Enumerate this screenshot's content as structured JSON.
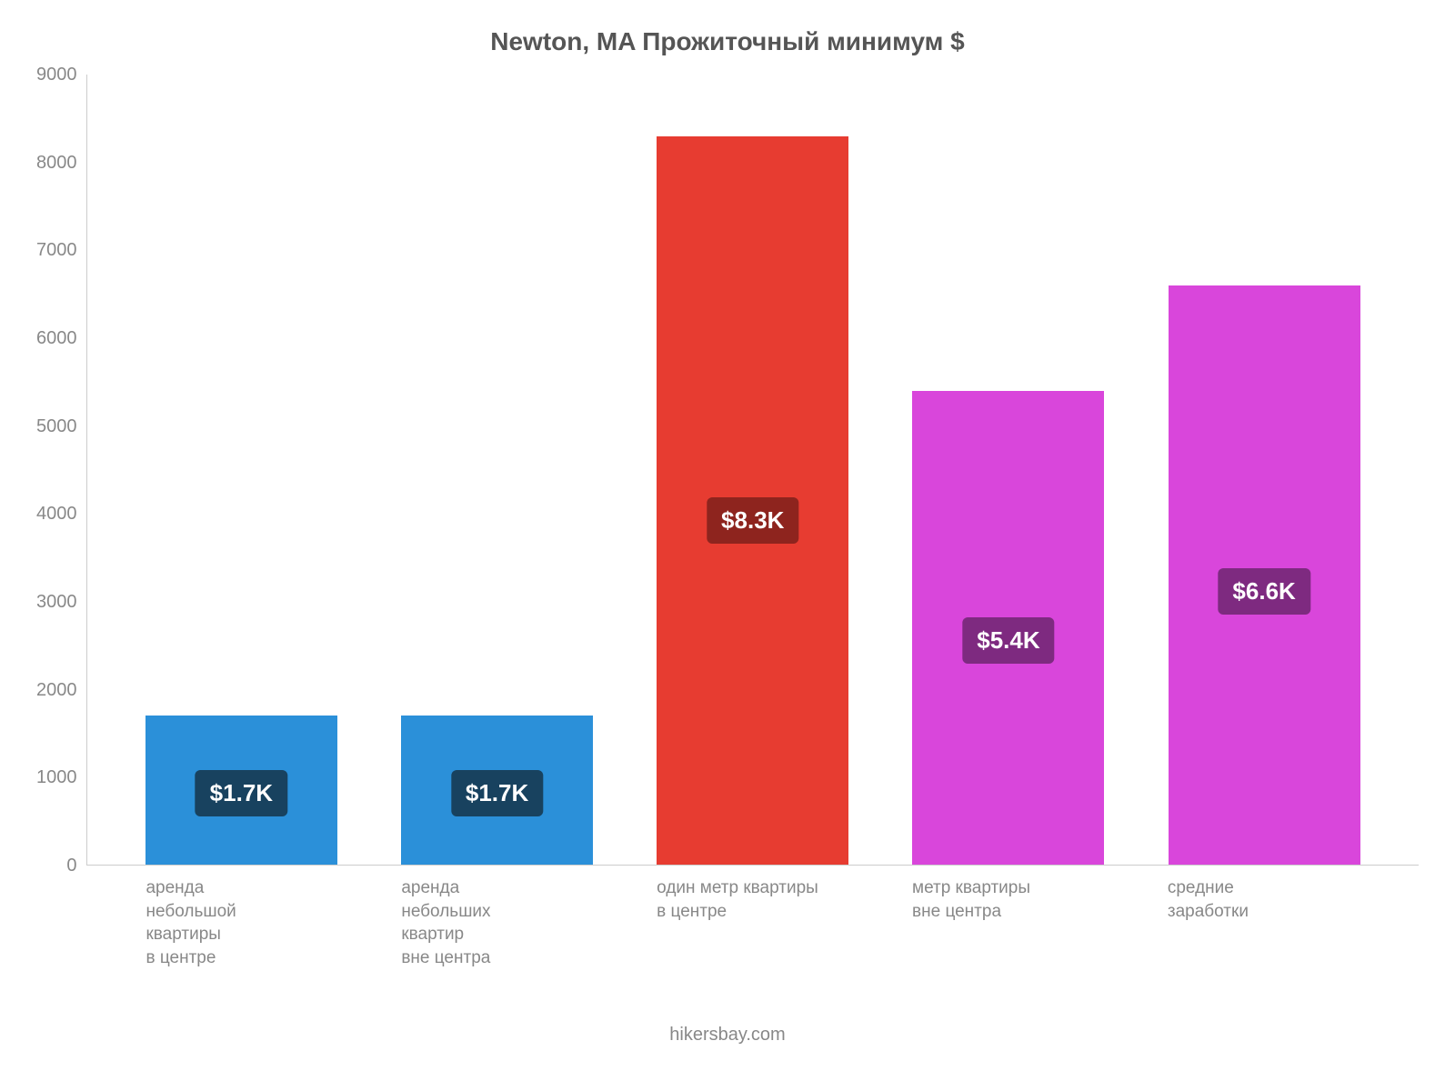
{
  "chart": {
    "type": "bar",
    "title": "Newton, MA Прожиточный минимум $",
    "title_fontsize": 28,
    "title_color": "#555555",
    "background_color": "#ffffff",
    "axis_line_color": "#cccccc",
    "tick_font_color": "#888888",
    "tick_fontsize": 20,
    "y": {
      "min": 0,
      "max": 9000,
      "step": 1000,
      "ticks": [
        "0",
        "1000",
        "2000",
        "3000",
        "4000",
        "5000",
        "6000",
        "7000",
        "8000",
        "9000"
      ]
    },
    "bar_label_fontsize": 26,
    "bar_label_text_color": "#ffffff",
    "bar_label_radius": 6,
    "x_label_fontsize": 19,
    "x_label_color": "#888888",
    "bars": [
      {
        "key": "rent-small-center",
        "value": 1700,
        "value_label": "$1.7K",
        "color": "#2b90d9",
        "label_bg": "#18425f",
        "x_label_lines": [
          "аренда",
          "небольшой",
          "квартиры",
          "в центре"
        ]
      },
      {
        "key": "rent-small-outside",
        "value": 1700,
        "value_label": "$1.7K",
        "color": "#2b90d9",
        "label_bg": "#18425f",
        "x_label_lines": [
          "аренда",
          "небольших",
          "квартир",
          "вне центра"
        ]
      },
      {
        "key": "sqm-center",
        "value": 8300,
        "value_label": "$8.3K",
        "color": "#e73c31",
        "label_bg": "#8e241e",
        "x_label_lines": [
          "один метр квартиры",
          "в центре"
        ]
      },
      {
        "key": "sqm-outside",
        "value": 5400,
        "value_label": "$5.4K",
        "color": "#d946db",
        "label_bg": "#7e2a80",
        "x_label_lines": [
          "метр квартиры",
          "вне центра"
        ]
      },
      {
        "key": "avg-salary",
        "value": 6600,
        "value_label": "$6.6K",
        "color": "#d946db",
        "label_bg": "#7e2a80",
        "x_label_lines": [
          "средние",
          "заработки"
        ]
      }
    ],
    "footer": "hikersbay.com",
    "footer_fontsize": 20,
    "footer_color": "#888888"
  }
}
